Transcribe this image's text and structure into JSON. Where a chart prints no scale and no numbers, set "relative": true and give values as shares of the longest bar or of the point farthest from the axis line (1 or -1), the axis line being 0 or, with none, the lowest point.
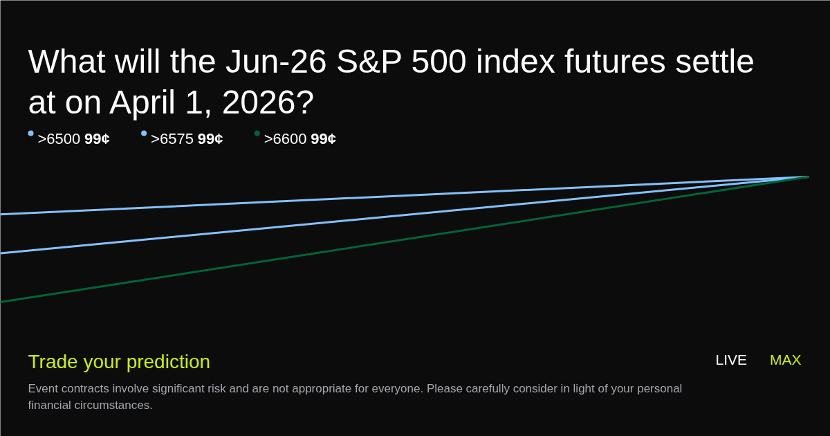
{
  "chart_data": {
    "type": "line",
    "title": "What will the Jun-26 S&P 500 index futures settle at on April 1, 2026?",
    "categories": [
      null,
      null
    ],
    "relative": true,
    "legend": "top left",
    "series": [
      {
        "name": ">6500 99¢",
        "color": "#84c1ff",
        "values": [
          0.7,
          1
        ]
      },
      {
        "name": ">6575 99¢",
        "color": "#84c1ff",
        "values": [
          0.39,
          1
        ]
      },
      {
        "name": ">6600 99¢",
        "color": "#00643a",
        "values": [
          0,
          1
        ]
      }
    ],
    "annotations": [
      "Trade your prediction",
      "LIVE",
      "MAX",
      "Event contracts involve significant risk and are not appropriate for everyone. Please carefully consider in light of your personal financial circumstances."
    ]
  }
}
